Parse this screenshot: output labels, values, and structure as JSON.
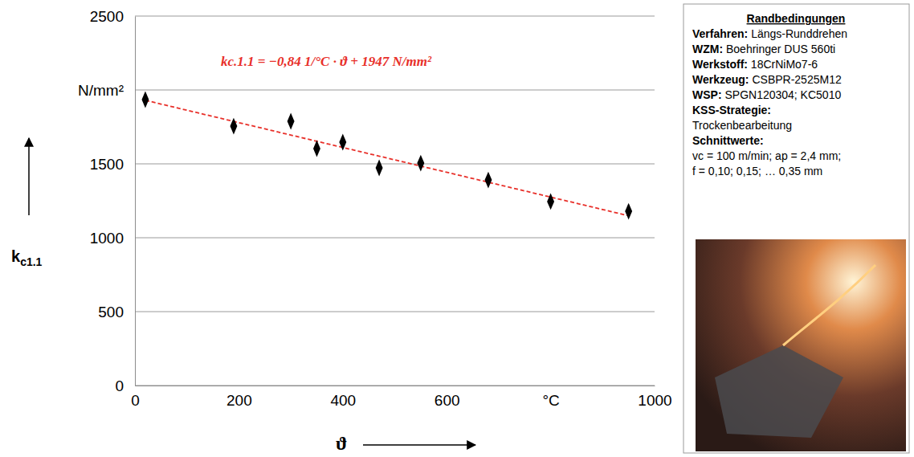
{
  "chart_data": {
    "type": "scatter",
    "xlabel": "ϑ",
    "ylabel": "kc1.1",
    "x": [
      20,
      190,
      300,
      350,
      400,
      470,
      550,
      680,
      800,
      950
    ],
    "values": [
      1935,
      1755,
      1788,
      1603,
      1647,
      1473,
      1505,
      1391,
      1245,
      1179
    ],
    "color": "#000000",
    "marker": "diamond",
    "trendline": {
      "x": [
        20,
        950
      ],
      "values": [
        1930,
        1149
      ],
      "color": "#e8302a",
      "line_style": "dashed"
    },
    "annotation": {
      "text": "kc.1.1 = −0,84 1/°C · ϑ + 1947 N/mm²",
      "color": "#e8302a"
    },
    "xlim": [
      0,
      1000
    ],
    "xticks": [
      0,
      200,
      400,
      600,
      {
        "value": 800,
        "label": "°C"
      },
      1000
    ],
    "ylim": [
      0,
      2500
    ],
    "yticks": [
      0,
      500,
      1000,
      1500,
      {
        "value": 2000,
        "label": "N/mm²"
      },
      2500
    ],
    "grid": true,
    "boundary_conditions": {
      "title": "Randbedingungen",
      "items": [
        {
          "label": "Verfahren:",
          "value": "Längs-Runddrehen"
        },
        {
          "label": "WZM:",
          "value": "Boehringer DUS 560ti"
        },
        {
          "label": "Werkstoff:",
          "value": "18CrNiMo7-6"
        },
        {
          "label": "Werkzeug:",
          "value": "CSBPR-2525M12"
        },
        {
          "label": "WSP:",
          "value": "SPGN120304;  KC5010"
        },
        {
          "label": "KSS-Strategie:",
          "lines": [
            "Trockenbearbeitung"
          ]
        },
        {
          "label": "Schnittwerte:",
          "lines": [
            "vc = 100 m/min; ap = 2,4 mm;",
            "f = 0,10;  0,15;  … 0,35 mm"
          ]
        }
      ]
    }
  }
}
